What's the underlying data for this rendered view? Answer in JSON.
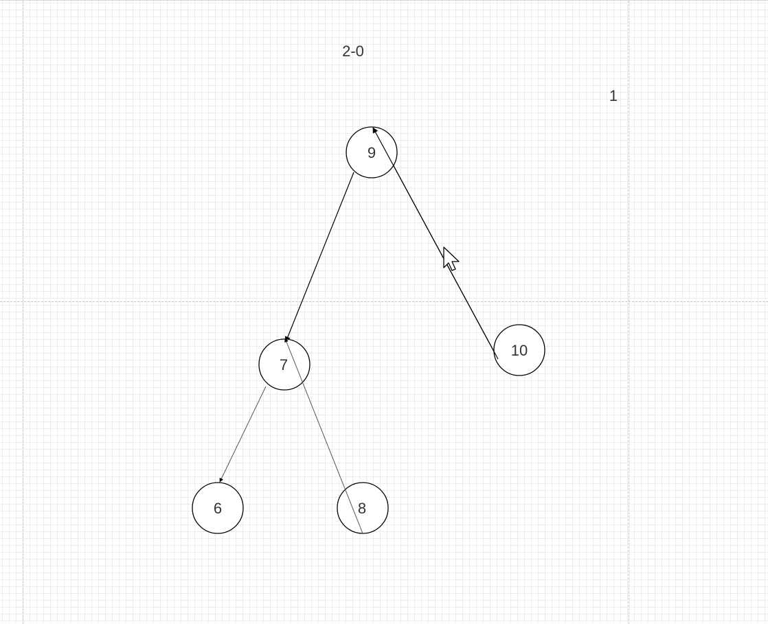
{
  "canvas": {
    "texts": {
      "title": "2-0",
      "page_number": "1"
    }
  },
  "nodes": [
    {
      "id": "n9",
      "label": "9"
    },
    {
      "id": "n7",
      "label": "7"
    },
    {
      "id": "n10",
      "label": "10"
    },
    {
      "id": "n6",
      "label": "6"
    },
    {
      "id": "n8",
      "label": "8"
    }
  ],
  "edges": [
    {
      "id": "e-9-7",
      "from": "9",
      "to": "7"
    },
    {
      "id": "e-10-9",
      "from": "10",
      "to": "9"
    },
    {
      "id": "e-7-6",
      "from": "7",
      "to": "6"
    },
    {
      "id": "e-8-7",
      "from": "8",
      "to": "7"
    }
  ],
  "cursor": {
    "icon": "mouse-pointer-icon"
  }
}
